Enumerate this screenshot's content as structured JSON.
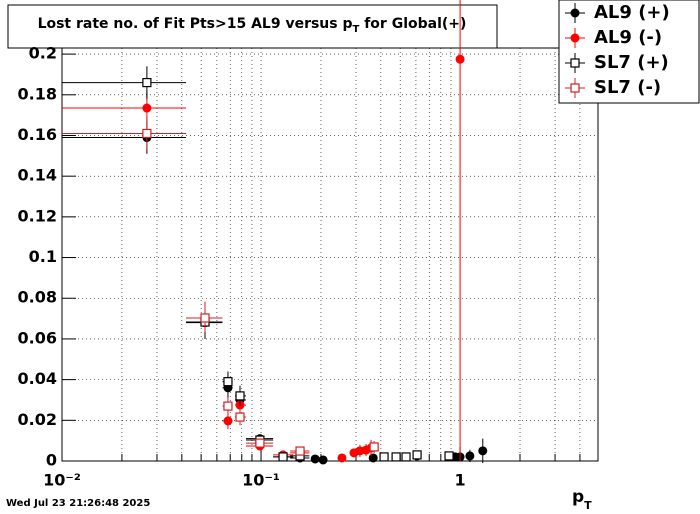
{
  "chart_data": {
    "type": "scatter",
    "title": "Lost rate no. of Fit Pts>15 AL9 versus p",
    "title_sub": "T",
    "title_end": " for Global(+)",
    "x_label": "p",
    "x_label_sub": "T",
    "timestamp": "Wed Jul 23 21:26:48 2025",
    "xlog": true,
    "grid": true,
    "legend": "top-right",
    "xlim": [
      0.01,
      4.93
    ],
    "ylim": [
      0,
      0.203
    ],
    "xticks": [
      {
        "value": 0.01,
        "label": "10⁻²"
      },
      {
        "value": 0.1,
        "label": "10⁻¹"
      },
      1
    ],
    "xminor_ticks": [
      0.02,
      0.03,
      0.04,
      0.05,
      0.06,
      0.07,
      0.08,
      0.09,
      0.2,
      0.3,
      0.4,
      0.5,
      0.6,
      0.7,
      0.8,
      0.9,
      2,
      3,
      4
    ],
    "yticks": [
      0,
      0.02,
      0.04,
      0.06,
      0.08,
      0.1,
      0.12,
      0.14,
      0.16,
      0.18,
      0.2
    ],
    "series": [
      {
        "name": "AL9 (+)",
        "color": "#000000",
        "marker": "filled",
        "x": [
          0.0267,
          0.0523,
          0.0682,
          0.0784,
          0.0987,
          0.129,
          0.157,
          0.187,
          0.205,
          0.366,
          0.608,
          0.944,
          1.0,
          1.12,
          1.3
        ],
        "values": [
          0.159,
          0.068,
          0.036,
          0.03,
          0.011,
          0.002,
          0.0015,
          0.001,
          0.0005,
          0.0015,
          0.0025,
          0.002,
          0.002,
          0.0025,
          0.005
        ],
        "errors": [
          0.008,
          0.008,
          0.005,
          0.005,
          0.002,
          0.0015,
          0.0015,
          0.001,
          0.0005,
          0.002,
          0.002,
          0.002,
          0.002,
          0.003,
          0.006
        ],
        "x_low": [
          0.01,
          0.042,
          0.064,
          0.074,
          0.084,
          0.115,
          0.14,
          0.18,
          0.2,
          0.36,
          0.6,
          0.93,
          0.99,
          1.1,
          1.28
        ],
        "x_high": [
          0.042,
          0.064,
          0.072,
          0.084,
          0.115,
          0.145,
          0.175,
          0.195,
          0.21,
          0.372,
          0.62,
          0.96,
          1.01,
          1.14,
          1.32
        ]
      },
      {
        "name": "AL9 (-)",
        "color": "#ff0000",
        "marker": "filled",
        "x": [
          0.0267,
          0.0523,
          0.0682,
          0.0784,
          0.0987,
          0.129,
          0.157,
          0.255,
          0.293,
          0.314,
          0.337,
          0.357,
          1.0
        ],
        "values": [
          0.1735,
          0.0703,
          0.0197,
          0.0275,
          0.0074,
          0.003,
          0.004,
          0.0015,
          0.004,
          0.005,
          0.0054,
          0.0064,
          0.1975
        ],
        "errors": [
          0.008,
          0.008,
          0.004,
          0.005,
          0.002,
          0.002,
          0.002,
          0.001,
          0.002,
          0.003,
          0.003,
          0.004,
          0.1975
        ],
        "x_low": [
          0.01,
          0.042,
          0.064,
          0.074,
          0.084,
          0.115,
          0.14,
          0.25,
          0.285,
          0.305,
          0.33,
          0.35,
          0.995
        ],
        "x_high": [
          0.042,
          0.064,
          0.072,
          0.084,
          0.115,
          0.145,
          0.175,
          0.26,
          0.3,
          0.32,
          0.345,
          0.365,
          1.005
        ]
      },
      {
        "name": "SL7 (+)",
        "color": "#000000",
        "marker": "open",
        "x": [
          0.0267,
          0.0523,
          0.0682,
          0.0784,
          0.0987,
          0.129,
          0.157,
          0.415,
          0.477,
          0.535,
          0.608,
          0.88
        ],
        "values": [
          0.186,
          0.0683,
          0.039,
          0.032,
          0.0103,
          0.002,
          0.0025,
          0.002,
          0.002,
          0.002,
          0.003,
          0.0025
        ],
        "errors": [
          0.008,
          0.008,
          0.005,
          0.005,
          0.002,
          0.0015,
          0.0015,
          0.001,
          0.001,
          0.001,
          0.0015,
          0.0015
        ],
        "x_low": [
          0.01,
          0.042,
          0.064,
          0.074,
          0.084,
          0.115,
          0.14,
          0.405,
          0.465,
          0.52,
          0.59,
          0.86
        ],
        "x_high": [
          0.042,
          0.064,
          0.072,
          0.084,
          0.115,
          0.145,
          0.175,
          0.425,
          0.49,
          0.55,
          0.625,
          0.9
        ]
      },
      {
        "name": "SL7 (-)",
        "color": "#cc2222",
        "marker": "open",
        "x": [
          0.0267,
          0.0523,
          0.0682,
          0.0784,
          0.0987,
          0.157,
          0.37
        ],
        "values": [
          0.161,
          0.0703,
          0.027,
          0.0216,
          0.0088,
          0.0049,
          0.0069
        ],
        "errors": [
          0.008,
          0.007,
          0.004,
          0.004,
          0.002,
          0.002,
          0.003
        ],
        "x_low": [
          0.01,
          0.042,
          0.064,
          0.074,
          0.084,
          0.14,
          0.36
        ],
        "x_high": [
          0.042,
          0.064,
          0.072,
          0.084,
          0.115,
          0.175,
          0.38
        ]
      }
    ]
  }
}
